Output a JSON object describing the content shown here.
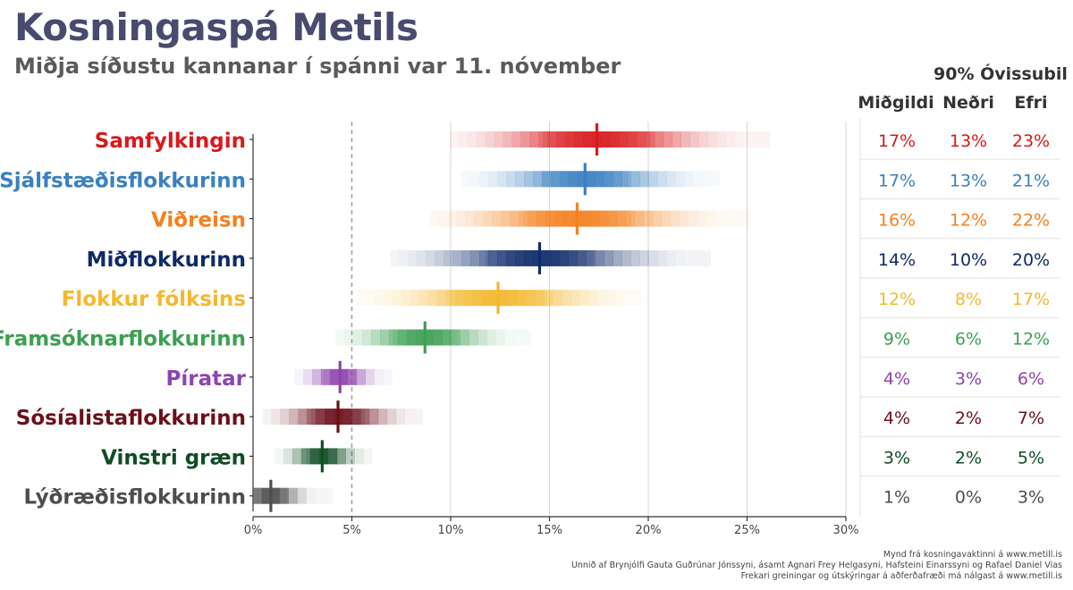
{
  "header": {
    "title": "Kosningaspá Metils",
    "subtitle": "Miðja síðustu kannanar í spánni var 11. nóvember"
  },
  "table": {
    "uncertainty_title": "90% Óvissubil",
    "col_median": "Miðgildi",
    "col_lower": "Neðri",
    "col_upper": "Efri"
  },
  "footer": {
    "line1": "Mynd frá kosningavaktinni á www.metill.is",
    "line2": "Unnið af Brynjólfi Gauta Guðrúnar Jónssyni, ásamt Agnari Frey Helgasyni, Hafsteini Einarssyni og Rafael Daniel Vias",
    "line3": "Frekari greiningar og útskýringar á aðferðafræði má nálgast á www.metill.is"
  },
  "chart_data": {
    "type": "interval",
    "title": "Kosningaspá Metils",
    "xlabel": "",
    "ylabel": "",
    "xlim": [
      0,
      30
    ],
    "xticks": [
      0,
      5,
      10,
      15,
      20,
      25,
      30
    ],
    "xtick_labels": [
      "0%",
      "5%",
      "10%",
      "15%",
      "20%",
      "25%",
      "30%"
    ],
    "reference_line": 5,
    "parties": [
      {
        "name": "Samfylkingin",
        "color": "#d7191c",
        "median": 17.4,
        "lower": 13,
        "upper": 23,
        "median_label": "17%",
        "lower_label": "13%",
        "upper_label": "23%"
      },
      {
        "name": "Sjálfstæðisflokkurinn",
        "color": "#3b80c0",
        "median": 16.8,
        "lower": 13,
        "upper": 21,
        "median_label": "17%",
        "lower_label": "13%",
        "upper_label": "21%"
      },
      {
        "name": "Viðreisn",
        "color": "#f5801e",
        "median": 16.4,
        "lower": 12,
        "upper": 22,
        "median_label": "16%",
        "lower_label": "12%",
        "upper_label": "22%"
      },
      {
        "name": "Miðflokkurinn",
        "color": "#0f2a6b",
        "median": 14.5,
        "lower": 10,
        "upper": 20,
        "median_label": "14%",
        "lower_label": "10%",
        "upper_label": "20%"
      },
      {
        "name": "Flokkur fólksins",
        "color": "#f4b82e",
        "median": 12.4,
        "lower": 8,
        "upper": 17,
        "median_label": "12%",
        "lower_label": "8%",
        "upper_label": "17%"
      },
      {
        "name": "Framsóknarflokkurinn",
        "color": "#3c9f53",
        "median": 8.7,
        "lower": 6,
        "upper": 12,
        "median_label": "9%",
        "lower_label": "6%",
        "upper_label": "12%"
      },
      {
        "name": "Píratar",
        "color": "#8e44ad",
        "median": 4.4,
        "lower": 3,
        "upper": 6,
        "median_label": "4%",
        "lower_label": "3%",
        "upper_label": "6%"
      },
      {
        "name": "Sósíalistaflokkurinn",
        "color": "#6b0f1a",
        "median": 4.3,
        "lower": 2,
        "upper": 7,
        "median_label": "4%",
        "lower_label": "2%",
        "upper_label": "7%"
      },
      {
        "name": "Vinstri græn",
        "color": "#0f4d24",
        "median": 3.5,
        "lower": 2,
        "upper": 5,
        "median_label": "3%",
        "lower_label": "2%",
        "upper_label": "5%"
      },
      {
        "name": "Lýðræðisflokkurinn",
        "color": "#4d4d4d",
        "median": 0.9,
        "lower": 0,
        "upper": 3,
        "median_label": "1%",
        "lower_label": "0%",
        "upper_label": "3%"
      }
    ]
  }
}
